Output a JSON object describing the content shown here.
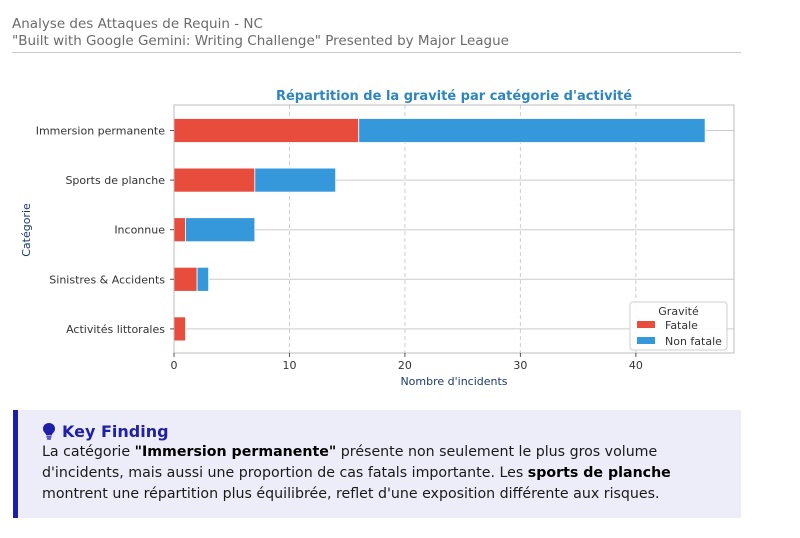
{
  "header": {
    "title": "Analyse des Attaques de Requin - NC",
    "subtitle": "\"Built with Google Gemini: Writing Challenge\" Presented by Major League"
  },
  "chart_data": {
    "type": "bar",
    "orientation": "horizontal",
    "stacked": true,
    "title": "Répartition de la gravité par catégorie d'activité",
    "xlabel": "Nombre d'incidents",
    "ylabel": "Catégorie",
    "categories": [
      "Immersion permanente",
      "Sports de planche",
      "Inconnue",
      "Sinistres & Accidents",
      "Activités littorales"
    ],
    "series": [
      {
        "name": "Fatale",
        "color": "#e74c3c",
        "values": [
          16,
          7,
          1,
          2,
          1
        ]
      },
      {
        "name": "Non fatale",
        "color": "#3498db",
        "values": [
          30,
          7,
          6,
          1,
          0
        ]
      }
    ],
    "xlim": [
      0,
      48.5
    ],
    "xticks": [
      0,
      10,
      20,
      30,
      40
    ],
    "grid": true,
    "legend": {
      "title": "Gravité",
      "position": "bottom-right"
    },
    "title_color": "#2e86c1"
  },
  "finding": {
    "title": "Key Finding",
    "body": {
      "p1": "La catégorie ",
      "b1": "\"Immersion permanente\"",
      "p2": " présente non seulement le plus gros volume d'incidents, mais aussi une proportion de cas fatals importante. Les ",
      "b2": "sports de planche",
      "p3": " montrent une répartition plus équilibrée, reflet d'une exposition différente aux risques."
    }
  }
}
